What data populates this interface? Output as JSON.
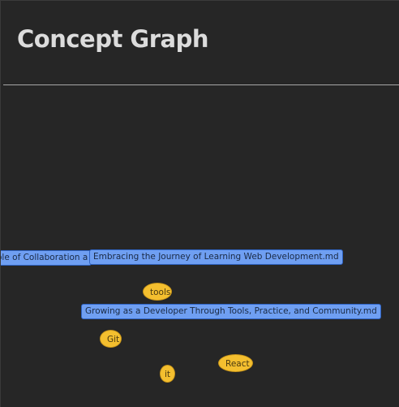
{
  "header": {
    "title": "Concept Graph"
  },
  "graph": {
    "files": [
      {
        "id": "collab",
        "label": "ole of Collaboration a"
      },
      {
        "id": "embracing",
        "label": "Embracing the Journey of Learning Web Development.md"
      },
      {
        "id": "growing",
        "label": "Growing as a Developer Through Tools, Practice, and Community.md"
      }
    ],
    "tags": [
      {
        "id": "tools",
        "label": "tools"
      },
      {
        "id": "git",
        "label": "Git"
      },
      {
        "id": "react",
        "label": "React"
      },
      {
        "id": "it",
        "label": "it"
      }
    ],
    "colors": {
      "file_node": "#6f9ff2",
      "tag_node": "#f4bf2f",
      "background": "#262626"
    }
  }
}
